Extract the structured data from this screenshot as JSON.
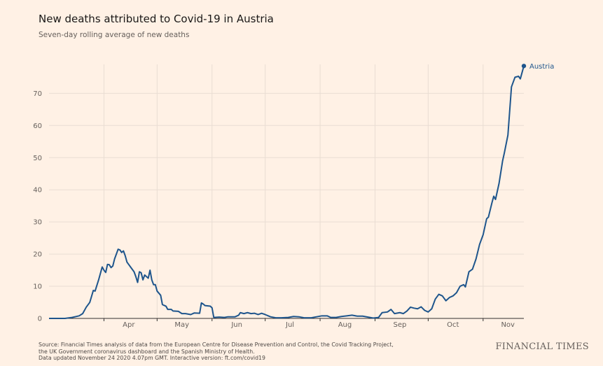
{
  "header": {
    "title": "New deaths attributed to Covid-19 in Austria",
    "subtitle": "Seven-day rolling average of new deaths"
  },
  "footer": {
    "source_line1": "Source: Financial Times analysis of data from the European Centre for Disease Prevention and Control, the Covid Tracking Project,",
    "source_line2": "the UK Government coronavirus dashboard and the Spanish Ministry of Health.",
    "updated": "Data updated November 24 2020 4.07pm GMT. Interactive version: ft.com/covid19",
    "brand": "FINANCIAL TIMES"
  },
  "colors": {
    "background": "#fff1e5",
    "line": "#1e558c",
    "grid": "#e9ddd3",
    "baseline": "#33302e"
  },
  "chart_data": {
    "type": "line",
    "title": "New deaths attributed to Covid-19 in Austria",
    "subtitle": "Seven-day rolling average of new deaths",
    "xlabel": "",
    "ylabel": "",
    "ylim": [
      0,
      79
    ],
    "yticks": [
      0,
      10,
      20,
      30,
      40,
      50,
      60,
      70
    ],
    "xlim": [
      "2020-03-01",
      "2020-11-24"
    ],
    "xticks": [
      {
        "label": "Apr",
        "date": "2020-04-01"
      },
      {
        "label": "May",
        "date": "2020-05-01"
      },
      {
        "label": "Jun",
        "date": "2020-06-01"
      },
      {
        "label": "Jul",
        "date": "2020-07-01"
      },
      {
        "label": "Aug",
        "date": "2020-08-01"
      },
      {
        "label": "Sep",
        "date": "2020-09-01"
      },
      {
        "label": "Oct",
        "date": "2020-10-01"
      },
      {
        "label": "Nov",
        "date": "2020-11-01"
      }
    ],
    "grid": true,
    "series": [
      {
        "name": "Austria",
        "points": [
          [
            "2020-03-01",
            0
          ],
          [
            "2020-03-10",
            0
          ],
          [
            "2020-03-14",
            0.3
          ],
          [
            "2020-03-18",
            0.8
          ],
          [
            "2020-03-20",
            1.5
          ],
          [
            "2020-03-22",
            3.5
          ],
          [
            "2020-03-24",
            5
          ],
          [
            "2020-03-26",
            8.7
          ],
          [
            "2020-03-27",
            8.5
          ],
          [
            "2020-03-29",
            12
          ],
          [
            "2020-03-31",
            16
          ],
          [
            "2020-04-01",
            15
          ],
          [
            "2020-04-02",
            14.3
          ],
          [
            "2020-04-03",
            16.8
          ],
          [
            "2020-04-04",
            16.7
          ],
          [
            "2020-04-05",
            15.8
          ],
          [
            "2020-04-06",
            16.3
          ],
          [
            "2020-04-07",
            18.5
          ],
          [
            "2020-04-09",
            21.5
          ],
          [
            "2020-04-10",
            21.3
          ],
          [
            "2020-04-11",
            20.5
          ],
          [
            "2020-04-12",
            21
          ],
          [
            "2020-04-13",
            19.5
          ],
          [
            "2020-04-14",
            17.5
          ],
          [
            "2020-04-16",
            16
          ],
          [
            "2020-04-18",
            14.5
          ],
          [
            "2020-04-19",
            13
          ],
          [
            "2020-04-20",
            11.2
          ],
          [
            "2020-04-21",
            14.5
          ],
          [
            "2020-04-22",
            14.2
          ],
          [
            "2020-04-23",
            12
          ],
          [
            "2020-04-24",
            13.5
          ],
          [
            "2020-04-26",
            12.5
          ],
          [
            "2020-04-27",
            15
          ],
          [
            "2020-04-28",
            12
          ],
          [
            "2020-04-29",
            10.5
          ],
          [
            "2020-04-30",
            10.5
          ],
          [
            "2020-05-01",
            8.5
          ],
          [
            "2020-05-03",
            7.2
          ],
          [
            "2020-05-04",
            4.3
          ],
          [
            "2020-05-06",
            3.8
          ],
          [
            "2020-05-07",
            2.8
          ],
          [
            "2020-05-09",
            2.8
          ],
          [
            "2020-05-10",
            2.3
          ],
          [
            "2020-05-13",
            2.2
          ],
          [
            "2020-05-15",
            1.5
          ],
          [
            "2020-05-17",
            1.5
          ],
          [
            "2020-05-20",
            1.2
          ],
          [
            "2020-05-22",
            1.7
          ],
          [
            "2020-05-25",
            1.6
          ],
          [
            "2020-05-26",
            4.8
          ],
          [
            "2020-05-27",
            4.5
          ],
          [
            "2020-05-28",
            4
          ],
          [
            "2020-05-31",
            3.8
          ],
          [
            "2020-06-01",
            3.3
          ],
          [
            "2020-06-02",
            0.3
          ],
          [
            "2020-06-05",
            0.4
          ],
          [
            "2020-06-08",
            0.3
          ],
          [
            "2020-06-10",
            0.5
          ],
          [
            "2020-06-14",
            0.5
          ],
          [
            "2020-06-16",
            1.0
          ],
          [
            "2020-06-17",
            1.8
          ],
          [
            "2020-06-19",
            1.5
          ],
          [
            "2020-06-21",
            1.8
          ],
          [
            "2020-06-23",
            1.5
          ],
          [
            "2020-06-25",
            1.6
          ],
          [
            "2020-06-27",
            1.2
          ],
          [
            "2020-06-29",
            1.6
          ],
          [
            "2020-07-01",
            1.2
          ],
          [
            "2020-07-04",
            0.5
          ],
          [
            "2020-07-07",
            0.2
          ],
          [
            "2020-07-10",
            0.2
          ],
          [
            "2020-07-14",
            0.3
          ],
          [
            "2020-07-17",
            0.6
          ],
          [
            "2020-07-20",
            0.5
          ],
          [
            "2020-07-23",
            0.2
          ],
          [
            "2020-07-27",
            0.2
          ],
          [
            "2020-07-30",
            0.5
          ],
          [
            "2020-08-02",
            0.8
          ],
          [
            "2020-08-05",
            0.8
          ],
          [
            "2020-08-07",
            0.3
          ],
          [
            "2020-08-10",
            0.3
          ],
          [
            "2020-08-13",
            0.6
          ],
          [
            "2020-08-16",
            0.8
          ],
          [
            "2020-08-19",
            1.0
          ],
          [
            "2020-08-22",
            0.7
          ],
          [
            "2020-08-25",
            0.7
          ],
          [
            "2020-08-28",
            0.4
          ],
          [
            "2020-08-31",
            0.1
          ],
          [
            "2020-09-03",
            0.3
          ],
          [
            "2020-09-05",
            1.8
          ],
          [
            "2020-09-08",
            2.0
          ],
          [
            "2020-09-10",
            2.8
          ],
          [
            "2020-09-12",
            1.5
          ],
          [
            "2020-09-15",
            1.8
          ],
          [
            "2020-09-17",
            1.5
          ],
          [
            "2020-09-19",
            2.3
          ],
          [
            "2020-09-21",
            3.5
          ],
          [
            "2020-09-23",
            3.2
          ],
          [
            "2020-09-25",
            3.0
          ],
          [
            "2020-09-27",
            3.6
          ],
          [
            "2020-09-29",
            2.5
          ],
          [
            "2020-10-01",
            2.0
          ],
          [
            "2020-10-03",
            3.0
          ],
          [
            "2020-10-05",
            6.0
          ],
          [
            "2020-10-07",
            7.5
          ],
          [
            "2020-10-09",
            7.0
          ],
          [
            "2020-10-11",
            5.5
          ],
          [
            "2020-10-13",
            6.5
          ],
          [
            "2020-10-15",
            7.0
          ],
          [
            "2020-10-17",
            8.0
          ],
          [
            "2020-10-19",
            10.0
          ],
          [
            "2020-10-21",
            10.5
          ],
          [
            "2020-10-22",
            9.8
          ],
          [
            "2020-10-24",
            14.5
          ],
          [
            "2020-10-26",
            15.3
          ],
          [
            "2020-10-28",
            18.5
          ],
          [
            "2020-10-30",
            23.0
          ],
          [
            "2020-11-01",
            26.0
          ],
          [
            "2020-11-03",
            31.0
          ],
          [
            "2020-11-04",
            31.5
          ],
          [
            "2020-11-06",
            36.0
          ],
          [
            "2020-11-07",
            38.0
          ],
          [
            "2020-11-08",
            37.0
          ],
          [
            "2020-11-10",
            42.0
          ],
          [
            "2020-11-12",
            49.0
          ],
          [
            "2020-11-13",
            51.5
          ],
          [
            "2020-11-15",
            57.0
          ],
          [
            "2020-11-17",
            72.0
          ],
          [
            "2020-11-19",
            75.0
          ],
          [
            "2020-11-21",
            75.3
          ],
          [
            "2020-11-22",
            74.5
          ],
          [
            "2020-11-24",
            78.5
          ]
        ]
      }
    ]
  }
}
